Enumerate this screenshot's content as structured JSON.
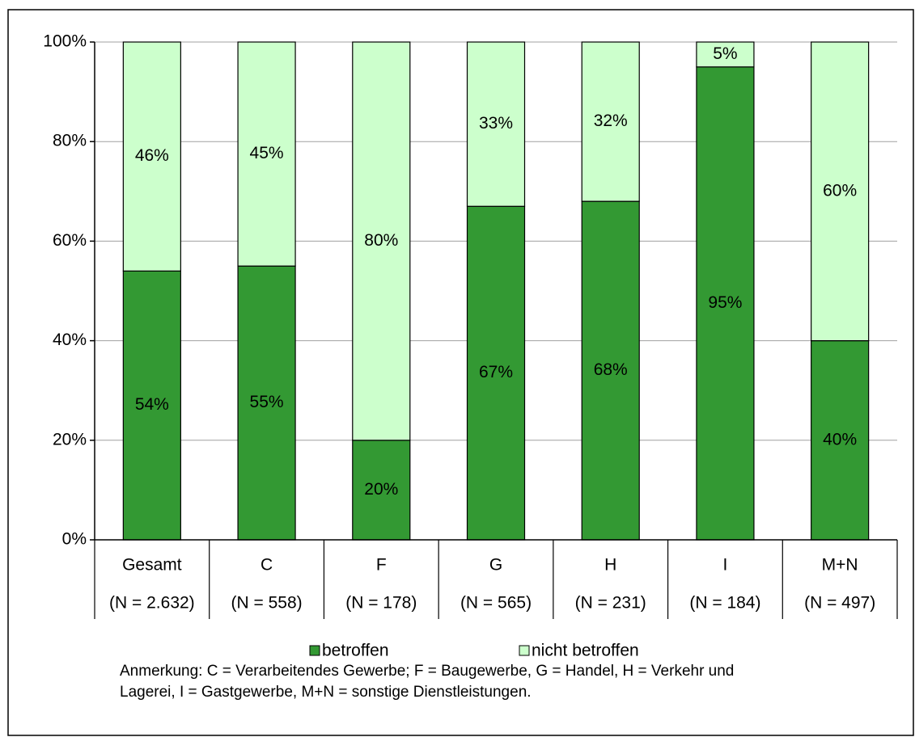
{
  "chart_data": {
    "type": "stacked_bar",
    "categories": [
      "Gesamt",
      "C",
      "F",
      "G",
      "H",
      "I",
      "M+N"
    ],
    "category_sublabels": [
      "(N = 2.632)",
      "(N = 558)",
      "(N = 178)",
      "(N = 565)",
      "(N = 231)",
      "(N = 184)",
      "(N = 497)"
    ],
    "series": [
      {
        "name": "betroffen",
        "color": "#339933",
        "values": [
          54,
          55,
          20,
          67,
          68,
          95,
          40
        ],
        "value_labels": [
          "54%",
          "55%",
          "20%",
          "67%",
          "68%",
          "95%",
          "40%"
        ]
      },
      {
        "name": "nicht betroffen",
        "color": "#ccffcc",
        "values": [
          46,
          45,
          80,
          33,
          32,
          5,
          60
        ],
        "value_labels": [
          "46%",
          "45%",
          "80%",
          "33%",
          "32%",
          "5%",
          "60%"
        ]
      }
    ],
    "ylim": [
      0,
      100
    ],
    "yticks": [
      {
        "value": 0,
        "label": "0%"
      },
      {
        "value": 20,
        "label": "20%"
      },
      {
        "value": 40,
        "label": "40%"
      },
      {
        "value": 60,
        "label": "60%"
      },
      {
        "value": 80,
        "label": "80%"
      },
      {
        "value": 100,
        "label": "100%"
      }
    ],
    "grid": true,
    "legend": "bottom",
    "note": [
      "Anmerkung: C = Verarbeitendes Gewerbe; F = Baugewerbe, G = Handel, H = Verkehr und",
      "Lagerei, I = Gastgewerbe, M+N = sonstige Dienstleistungen."
    ]
  }
}
